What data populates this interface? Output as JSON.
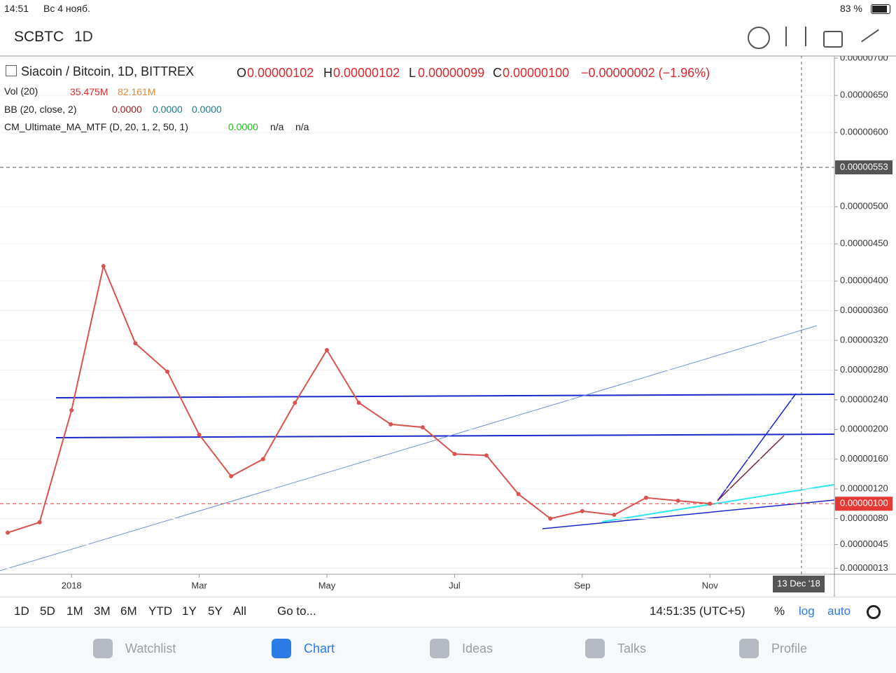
{
  "status_bar": {
    "time": "14:51",
    "date": "Вс 4 нояб.",
    "battery": "83 %"
  },
  "toolbar": {
    "symbol": "SCBTC",
    "interval": "1D"
  },
  "legend": {
    "main": {
      "title": "Siacoin / Bitcoin, 1D, BITTREX",
      "o_label": "O",
      "open": "0.00000102",
      "h_label": "H",
      "high": "0.00000102",
      "l_label": "L",
      "low": "0.00000099",
      "c_label": "C",
      "close": "0.00000100",
      "change": "−0.00000002 (−1.96%)"
    },
    "vol": {
      "name": "Vol (20)",
      "v1": "35.475M",
      "v2": "82.161M"
    },
    "bb": {
      "name": "BB (20, close, 2)",
      "v1": "0.0000",
      "v2": "0.0000",
      "v3": "0.0000"
    },
    "cm": {
      "name": "CM_Ultimate_MA_MTF (D, 20, 1, 2, 50, 1)",
      "v1": "0.0000",
      "v2": "n/a",
      "v3": "n/a"
    }
  },
  "chart_data": {
    "type": "line",
    "color": "#d9534f",
    "categories": [
      null,
      null,
      "2018",
      null,
      null,
      null,
      "Mar",
      null,
      null,
      null,
      "May",
      null,
      null,
      null,
      "Jul",
      null,
      null,
      null,
      "Sep",
      null,
      null,
      null,
      "Nov"
    ],
    "values": [
      6.1e-07,
      7.5e-07,
      2.26e-06,
      4.2e-06,
      3.16e-06,
      2.78e-06,
      1.93e-06,
      1.37e-06,
      1.6e-06,
      2.36e-06,
      3.07e-06,
      2.36e-06,
      2.07e-06,
      2.03e-06,
      1.67e-06,
      1.65e-06,
      1.13e-06,
      8e-07,
      9e-07,
      8.5e-07,
      1.08e-06,
      1.04e-06,
      1e-06
    ],
    "ylim": [
      5e-08,
      7.03e-06
    ],
    "yticks": [
      {
        "value": 7e-06,
        "label": "0.00000700"
      },
      {
        "value": 6.5e-06,
        "label": "0.00000650"
      },
      {
        "value": 6e-06,
        "label": "0.00000600"
      },
      {
        "value": 5e-06,
        "label": "0.00000500"
      },
      {
        "value": 4.5e-06,
        "label": "0.00000450"
      },
      {
        "value": 4e-06,
        "label": "0.00000400"
      },
      {
        "value": 3.6e-06,
        "label": "0.00000360"
      },
      {
        "value": 3.2e-06,
        "label": "0.00000320"
      },
      {
        "value": 2.8e-06,
        "label": "0.00000280"
      },
      {
        "value": 2.4e-06,
        "label": "0.00000240"
      },
      {
        "value": 2e-06,
        "label": "0.00000200"
      },
      {
        "value": 1.6e-06,
        "label": "0.00000160"
      },
      {
        "value": 1.2e-06,
        "label": "0.00000120"
      },
      {
        "value": 8e-07,
        "label": "0.00000080"
      },
      {
        "value": 4.5e-07,
        "label": "0.00000045"
      },
      {
        "value": 1.3e-07,
        "label": "0.00000013"
      }
    ],
    "crosshair_price": {
      "value": 5.53e-06,
      "label": "0.00000553"
    },
    "last_price": {
      "value": 1e-06,
      "label": "0.00000100"
    },
    "crosshair_date": "13 Dec '18",
    "grid": true
  },
  "range_bar": {
    "ranges": [
      "1D",
      "5D",
      "1M",
      "3M",
      "6M",
      "YTD",
      "1Y",
      "5Y",
      "All"
    ],
    "goto": "Go to...",
    "clock": "14:51:35 (UTC+5)",
    "percent": "%",
    "log": "log",
    "auto": "auto"
  },
  "tabs": [
    "Watchlist",
    "Chart",
    "Ideas",
    "Talks",
    "Profile"
  ]
}
